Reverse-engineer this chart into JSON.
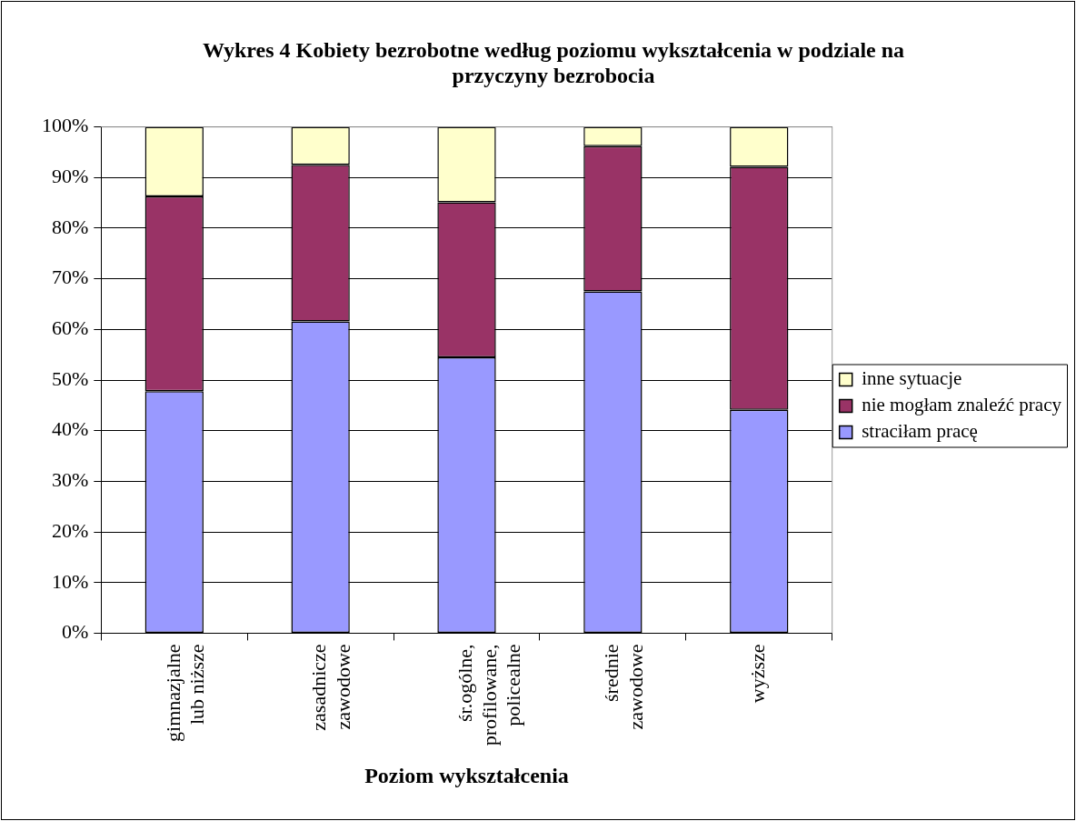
{
  "chart_data": {
    "type": "bar",
    "stacked": true,
    "title": "Wykres 4 Kobiety bezrobotne według poziomu wykształcenia w podziale na przyczyny bezrobocia",
    "xlabel": "Poziom wykształcenia",
    "categories": [
      "gimnazjalne lub niższe",
      "zasadnicze zawodowe",
      "śr.ogólne, profilowane, policealne",
      "średnie zawodowe",
      "wyższe"
    ],
    "series": [
      {
        "name": "straciłam pracę",
        "color": "#9999ff",
        "values": [
          47.8,
          61.6,
          54.5,
          67.5,
          44.1
        ]
      },
      {
        "name": "nie mogłam znaleźć pracy",
        "color": "#993366",
        "values": [
          38.5,
          30.9,
          30.6,
          28.7,
          48.0
        ]
      },
      {
        "name": "inne sytuacje",
        "color": "#ffffcc",
        "values": [
          13.7,
          7.5,
          14.9,
          3.8,
          7.9
        ]
      }
    ],
    "ylim": [
      0,
      100
    ],
    "yticks": [
      {
        "value": 0,
        "label": "0%"
      },
      {
        "value": 10,
        "label": "10%"
      },
      {
        "value": 20,
        "label": "20%"
      },
      {
        "value": 30,
        "label": "30%"
      },
      {
        "value": 40,
        "label": "40%"
      },
      {
        "value": 50,
        "label": "50%"
      },
      {
        "value": 60,
        "label": "60%"
      },
      {
        "value": 70,
        "label": "70%"
      },
      {
        "value": 80,
        "label": "80%"
      },
      {
        "value": 90,
        "label": "90%"
      },
      {
        "value": 100,
        "label": "100%"
      }
    ],
    "grid": "y",
    "legend": "right"
  }
}
